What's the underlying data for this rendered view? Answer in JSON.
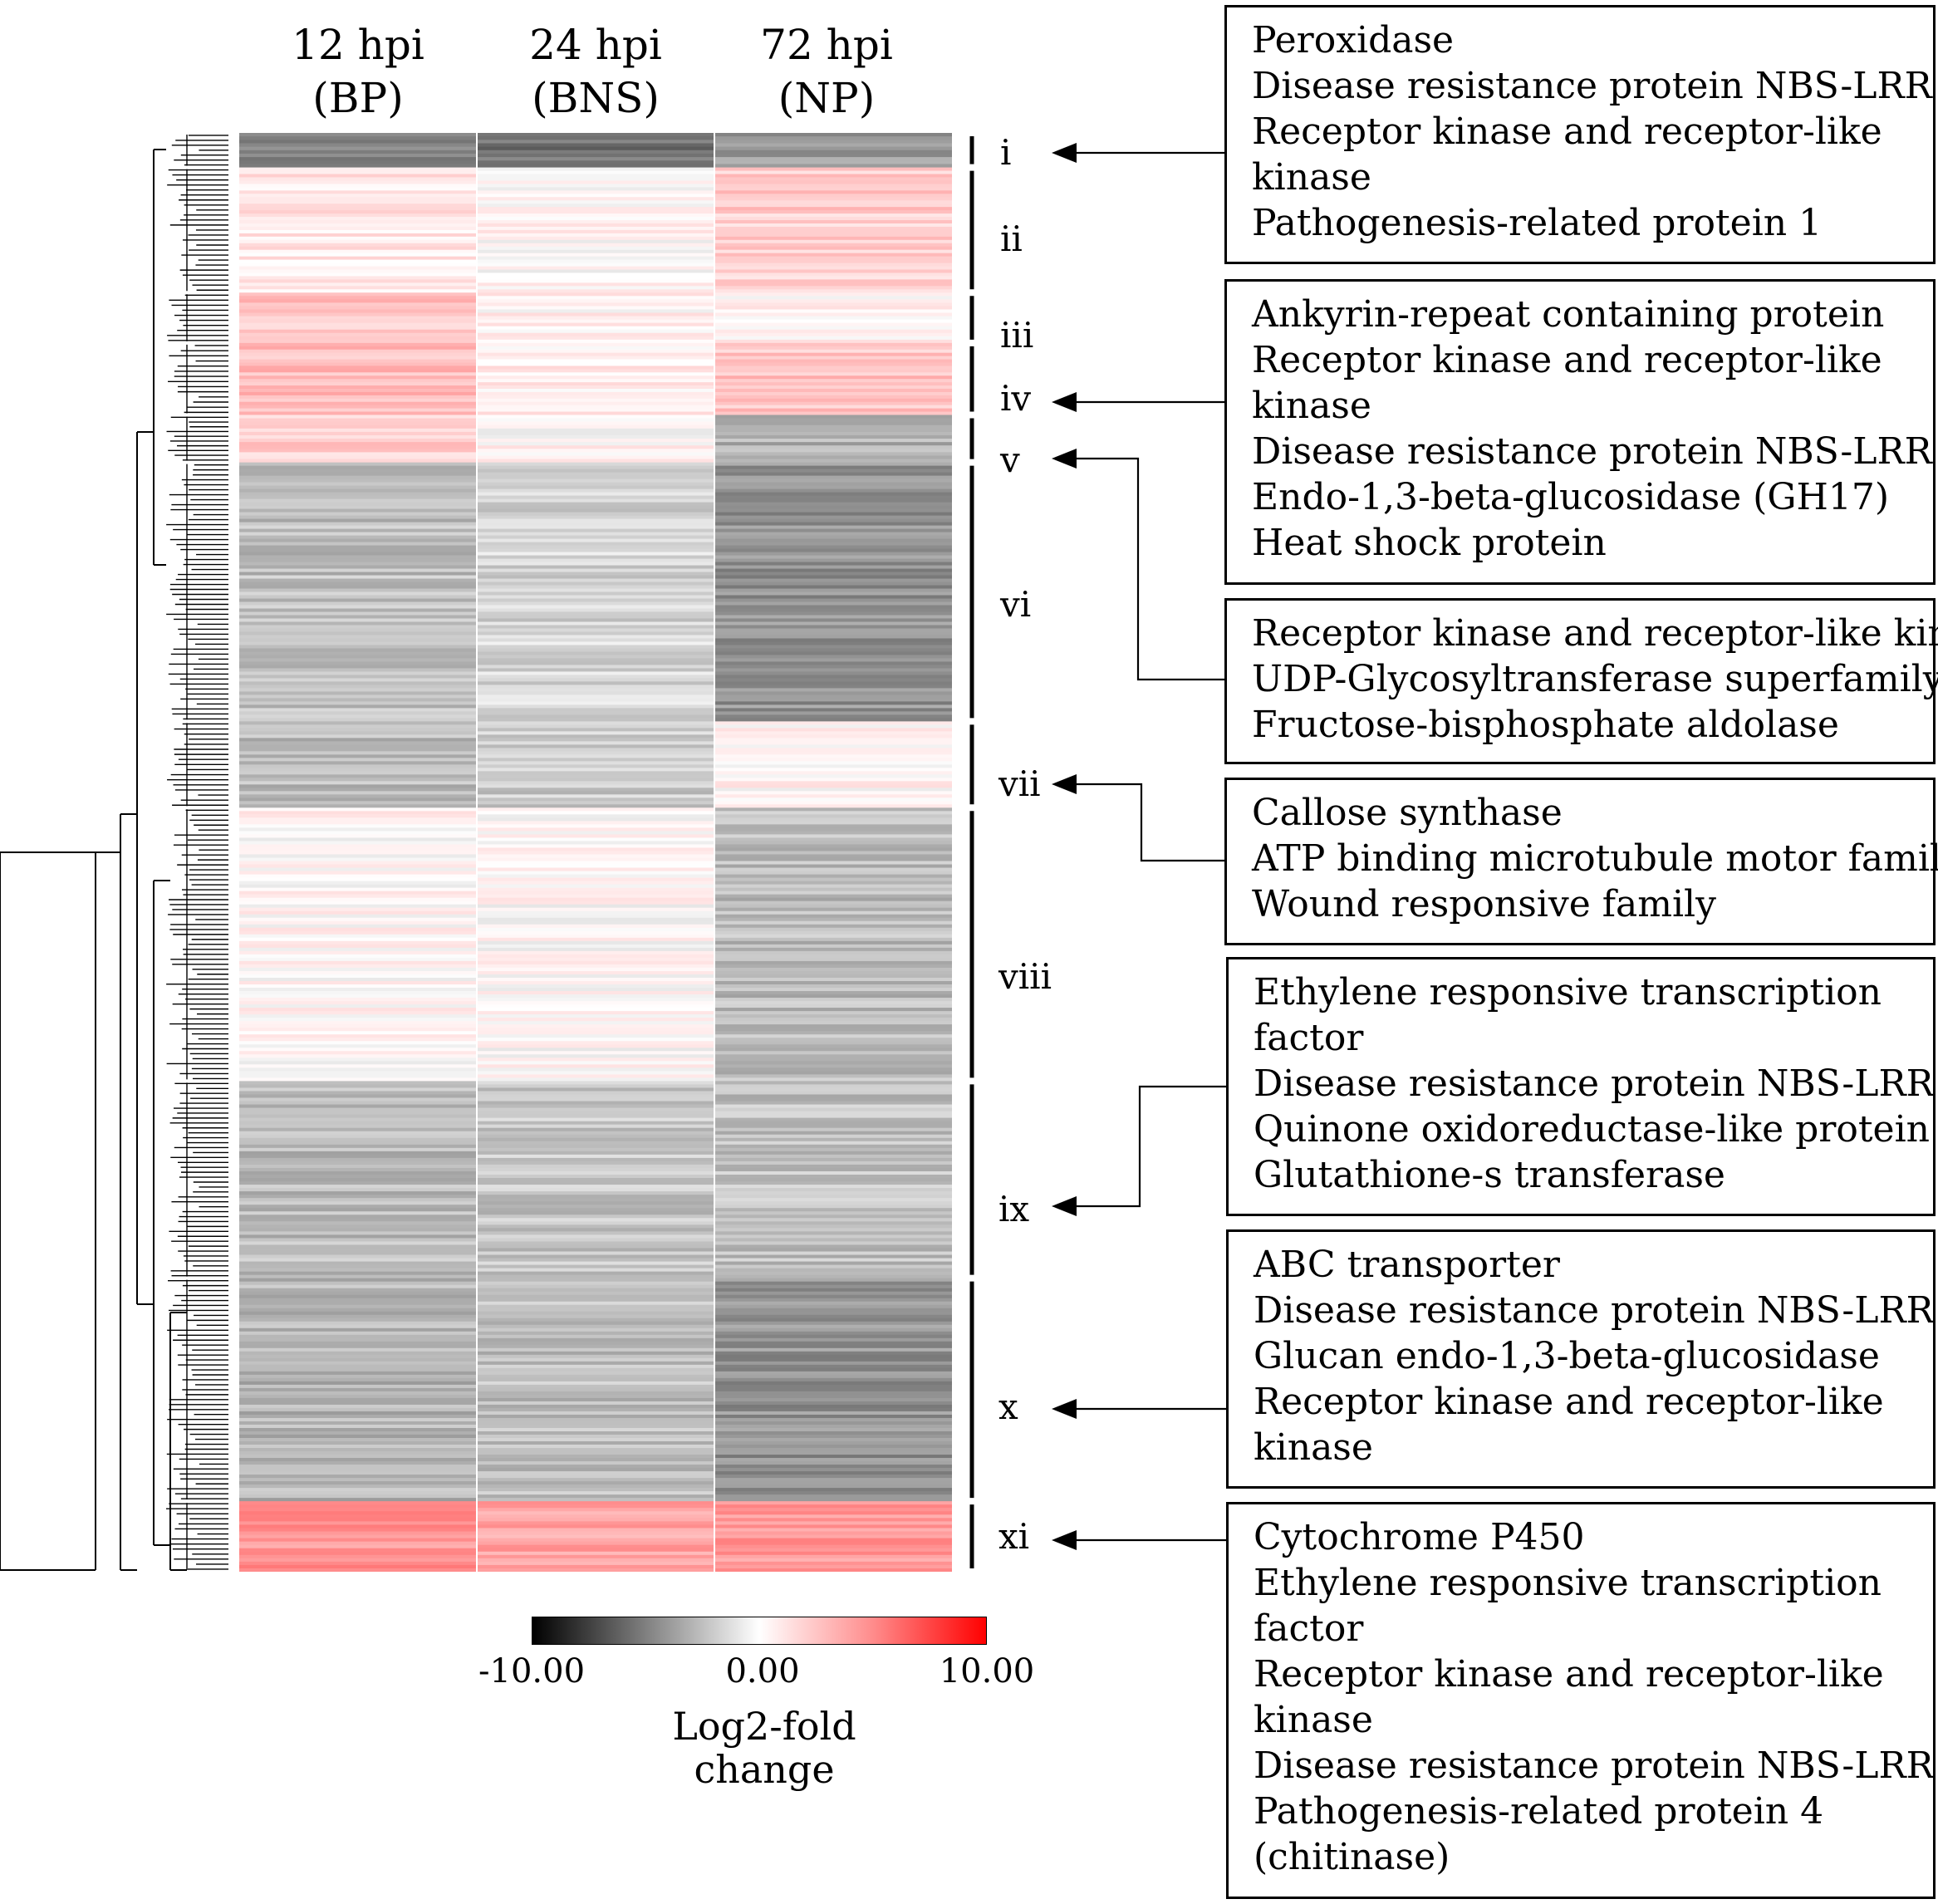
{
  "chart_data": {
    "type": "heatmap",
    "title": "",
    "columns": [
      {
        "time": "12 hpi",
        "stage": "(BP)"
      },
      {
        "time": "24 hpi",
        "stage": "(BNS)"
      },
      {
        "time": "72 hpi",
        "stage": "(NP)"
      }
    ],
    "value_range": [
      -10,
      10
    ],
    "colorbar": {
      "min_label": "-10.00",
      "mid_label": "0.00",
      "max_label": "10.00",
      "title": "Log2-fold change",
      "colors": {
        "low": "#000000",
        "mid": "#ffffff",
        "high": "#ff0000"
      }
    },
    "clusters": [
      {
        "id": "i",
        "label": "i",
        "share": 0.024,
        "values": [
          -4.5,
          -5.5,
          -4.0
        ]
      },
      {
        "id": "ii",
        "label": "ii",
        "share": 0.087,
        "values": [
          1.0,
          0.2,
          2.0
        ]
      },
      {
        "id": "iii",
        "label": "iii",
        "share": 0.035,
        "values": [
          2.3,
          0.3,
          0.4
        ]
      },
      {
        "id": "iv",
        "label": "iv",
        "share": 0.05,
        "values": [
          2.6,
          0.6,
          2.3
        ]
      },
      {
        "id": "v",
        "label": "v",
        "share": 0.033,
        "values": [
          2.0,
          0.2,
          -3.0
        ]
      },
      {
        "id": "vi",
        "label": "vi",
        "share": 0.18,
        "values": [
          -2.5,
          -1.6,
          -4.2
        ]
      },
      {
        "id": "vii",
        "label": "vii",
        "share": 0.06,
        "values": [
          -2.6,
          -2.0,
          0.3
        ]
      },
      {
        "id": "viii",
        "label": "viii",
        "share": 0.19,
        "values": [
          0.2,
          0.1,
          -2.6
        ]
      },
      {
        "id": "ix",
        "label": "ix",
        "share": 0.137,
        "values": [
          -2.6,
          -2.2,
          -2.4
        ]
      },
      {
        "id": "x",
        "label": "x",
        "share": 0.155,
        "values": [
          -2.9,
          -2.5,
          -4.2
        ]
      },
      {
        "id": "xi",
        "label": "xi",
        "share": 0.049,
        "values": [
          4.2,
          3.5,
          4.0
        ]
      }
    ]
  },
  "annotations": [
    {
      "id": "box-1",
      "lines": [
        "Peroxidase",
        "Disease resistance protein NBS-LRR",
        "Receptor kinase and receptor-like",
        "kinase",
        "Pathogenesis-related protein 1"
      ]
    },
    {
      "id": "box-2",
      "lines": [
        "Ankyrin-repeat containing protein",
        "Receptor kinase and receptor-like",
        "kinase",
        "Disease resistance protein NBS-LRR",
        "Endo-1,3-beta-glucosidase (GH17)",
        "Heat shock protein"
      ]
    },
    {
      "id": "box-3",
      "lines": [
        "Receptor kinase and receptor-like kinase",
        "UDP-Glycosyltransferase superfamily",
        "Fructose-bisphosphate aldolase"
      ]
    },
    {
      "id": "box-4",
      "lines": [
        "Callose synthase",
        "ATP binding microtubule motor family",
        "Wound responsive family"
      ]
    },
    {
      "id": "box-5",
      "lines": [
        "Ethylene responsive transcription",
        "factor",
        "Disease resistance protein NBS-LRR",
        "Quinone oxidoreductase-like protein",
        "Glutathione-s transferase"
      ]
    },
    {
      "id": "box-6",
      "lines": [
        "ABC transporter",
        "Disease resistance protein NBS-LRR",
        "Glucan endo-1,3-beta-glucosidase",
        "Receptor kinase and receptor-like",
        "kinase"
      ]
    },
    {
      "id": "box-7",
      "lines": [
        "Cytochrome P450",
        "Ethylene responsive transcription",
        "factor",
        "Receptor kinase  and receptor-like",
        "kinase",
        "Disease resistance protein NBS-LRR",
        "Pathogenesis-related protein 4",
        "(chitinase)"
      ]
    }
  ]
}
